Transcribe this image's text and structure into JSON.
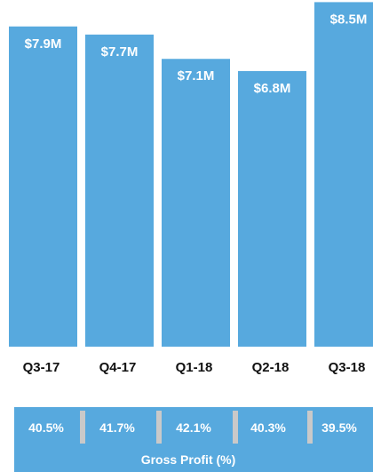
{
  "colors": {
    "bar": "#57a9de",
    "background": "#ffffff",
    "tick_text": "#111111",
    "label_text": "#ffffff",
    "separator": "#c9c9c9"
  },
  "chart_data": [
    {
      "type": "bar",
      "title": "",
      "xlabel": "",
      "ylabel": "",
      "categories": [
        "Q3-17",
        "Q4-17",
        "Q1-18",
        "Q2-18",
        "Q3-18"
      ],
      "values": [
        7.9,
        7.7,
        7.1,
        6.8,
        8.5
      ],
      "data_labels": [
        "$7.9M",
        "$7.7M",
        "$7.1M",
        "$6.8M",
        "$8.5M"
      ],
      "ylim": [
        0,
        8.6
      ],
      "grid": false,
      "legend": "none"
    },
    {
      "type": "table",
      "title": "Gross Profit (%)",
      "categories": [
        "Q3-17",
        "Q4-17",
        "Q1-18",
        "Q2-18",
        "Q3-18"
      ],
      "values": [
        40.5,
        41.7,
        42.1,
        40.3,
        39.5
      ],
      "data_labels": [
        "40.5%",
        "41.7%",
        "42.1%",
        "40.3%",
        "39.5%"
      ]
    }
  ]
}
